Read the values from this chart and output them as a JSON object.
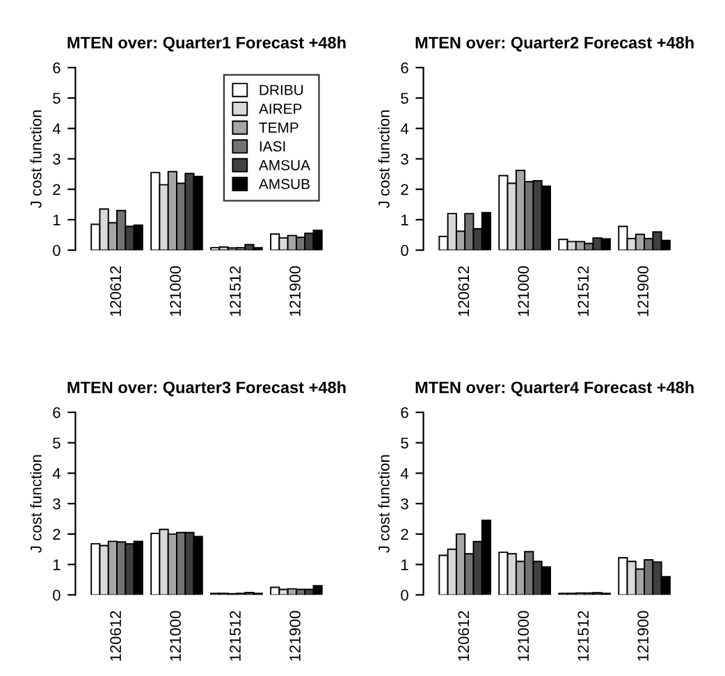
{
  "chart_data": [
    {
      "type": "bar",
      "title": "MTEN over: Quarter1 Forecast +48h",
      "ylabel": "J cost function",
      "categories": [
        "120612",
        "121000",
        "121512",
        "121900"
      ],
      "ylim": [
        0,
        6
      ],
      "yticks": [
        0,
        1,
        2,
        3,
        4,
        5,
        6
      ],
      "legend": "top right",
      "series": [
        {
          "name": "DRIBU",
          "color": "#ffffff",
          "values": [
            0.85,
            2.55,
            0.08,
            0.53
          ]
        },
        {
          "name": "AIREP",
          "color": "#d9d9d9",
          "values": [
            1.35,
            2.15,
            0.1,
            0.4
          ]
        },
        {
          "name": "TEMP",
          "color": "#a6a6a6",
          "values": [
            0.9,
            2.58,
            0.07,
            0.48
          ]
        },
        {
          "name": "IASI",
          "color": "#737373",
          "values": [
            1.3,
            2.2,
            0.08,
            0.42
          ]
        },
        {
          "name": "AMSUA",
          "color": "#404040",
          "values": [
            0.78,
            2.52,
            0.18,
            0.55
          ]
        },
        {
          "name": "AMSUB",
          "color": "#000000",
          "values": [
            0.82,
            2.42,
            0.08,
            0.65
          ]
        }
      ]
    },
    {
      "type": "bar",
      "title": "MTEN over: Quarter2 Forecast +48h",
      "ylabel": "J cost function",
      "categories": [
        "120612",
        "121000",
        "121512",
        "121900"
      ],
      "ylim": [
        0,
        6
      ],
      "yticks": [
        0,
        1,
        2,
        3,
        4,
        5,
        6
      ],
      "series": [
        {
          "color": "#ffffff",
          "values": [
            0.45,
            2.45,
            0.35,
            0.78
          ]
        },
        {
          "color": "#d9d9d9",
          "values": [
            1.2,
            2.2,
            0.28,
            0.38
          ]
        },
        {
          "color": "#a6a6a6",
          "values": [
            0.62,
            2.62,
            0.28,
            0.52
          ]
        },
        {
          "color": "#737373",
          "values": [
            1.2,
            2.25,
            0.22,
            0.38
          ]
        },
        {
          "color": "#404040",
          "values": [
            0.7,
            2.28,
            0.4,
            0.6
          ]
        },
        {
          "color": "#000000",
          "values": [
            1.23,
            2.1,
            0.37,
            0.32
          ]
        }
      ]
    },
    {
      "type": "bar",
      "title": "MTEN over: Quarter3 Forecast +48h",
      "ylabel": "J cost function",
      "categories": [
        "120612",
        "121000",
        "121512",
        "121900"
      ],
      "ylim": [
        0,
        6
      ],
      "yticks": [
        0,
        1,
        2,
        3,
        4,
        5,
        6
      ],
      "series": [
        {
          "color": "#ffffff",
          "values": [
            1.68,
            2.02,
            0.05,
            0.25
          ]
        },
        {
          "color": "#d9d9d9",
          "values": [
            1.62,
            2.15,
            0.05,
            0.18
          ]
        },
        {
          "color": "#a6a6a6",
          "values": [
            1.76,
            2.0,
            0.04,
            0.2
          ]
        },
        {
          "color": "#737373",
          "values": [
            1.74,
            2.05,
            0.05,
            0.18
          ]
        },
        {
          "color": "#404040",
          "values": [
            1.68,
            2.05,
            0.08,
            0.18
          ]
        },
        {
          "color": "#000000",
          "values": [
            1.76,
            1.92,
            0.05,
            0.3
          ]
        }
      ]
    },
    {
      "type": "bar",
      "title": "MTEN over: Quarter4 Forecast +48h",
      "ylabel": "J cost function",
      "categories": [
        "120612",
        "121000",
        "121512",
        "121900"
      ],
      "ylim": [
        0,
        6
      ],
      "yticks": [
        0,
        1,
        2,
        3,
        4,
        5,
        6
      ],
      "series": [
        {
          "color": "#ffffff",
          "values": [
            1.3,
            1.4,
            0.05,
            1.22
          ]
        },
        {
          "color": "#d9d9d9",
          "values": [
            1.5,
            1.35,
            0.05,
            1.1
          ]
        },
        {
          "color": "#a6a6a6",
          "values": [
            2.0,
            1.1,
            0.06,
            0.85
          ]
        },
        {
          "color": "#737373",
          "values": [
            1.35,
            1.42,
            0.06,
            1.15
          ]
        },
        {
          "color": "#404040",
          "values": [
            1.75,
            1.1,
            0.07,
            1.08
          ]
        },
        {
          "color": "#000000",
          "values": [
            2.45,
            0.92,
            0.05,
            0.6
          ]
        }
      ]
    }
  ]
}
